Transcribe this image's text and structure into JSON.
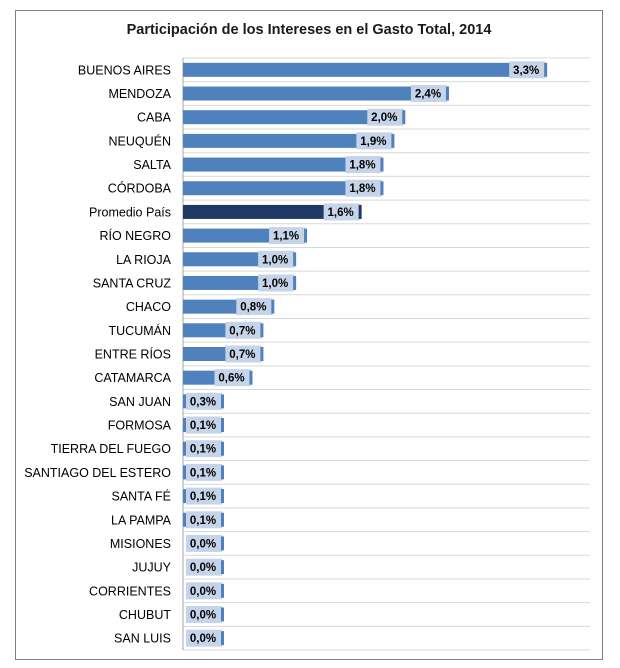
{
  "chart_data": {
    "type": "bar",
    "orientation": "horizontal",
    "title": "Participación de los Intereses en el Gasto Total, 2014",
    "categories": [
      "BUENOS AIRES",
      "MENDOZA",
      "CABA",
      "NEUQUÉN",
      "SALTA",
      "CÓRDOBA",
      "Promedio País",
      "RÍO NEGRO",
      "LA RIOJA",
      "SANTA CRUZ",
      "CHACO",
      "TUCUMÁN",
      "ENTRE RÍOS",
      "CATAMARCA",
      "SAN JUAN",
      "FORMOSA",
      "TIERRA DEL FUEGO",
      "SANTIAGO DEL ESTERO",
      "SANTA FÉ",
      "LA PAMPA",
      "MISIONES",
      "JUJUY",
      "CORRIENTES",
      "CHUBUT",
      "SAN LUIS"
    ],
    "values": [
      3.3,
      2.4,
      2.0,
      1.9,
      1.8,
      1.8,
      1.6,
      1.1,
      1.0,
      1.0,
      0.8,
      0.7,
      0.7,
      0.6,
      0.3,
      0.1,
      0.1,
      0.1,
      0.1,
      0.1,
      0.0,
      0.0,
      0.0,
      0.0,
      0.0
    ],
    "value_labels": [
      "3,3%",
      "2,4%",
      "2,0%",
      "1,9%",
      "1,8%",
      "1,8%",
      "1,6%",
      "1,1%",
      "1,0%",
      "1,0%",
      "0,8%",
      "0,7%",
      "0,7%",
      "0,6%",
      "0,3%",
      "0,1%",
      "0,1%",
      "0,1%",
      "0,1%",
      "0,1%",
      "0,0%",
      "0,0%",
      "0,0%",
      "0,0%",
      "0,0%"
    ],
    "highlight_category": "Promedio País",
    "xlim": [
      0,
      3.5
    ],
    "grid": "horizontal",
    "legend": "none",
    "colors": {
      "bar": "#4f81bd",
      "highlight": "#1f3864",
      "label_box": "#c6d4ea",
      "grid": "#d9d9d9",
      "axis": "#a6a6a6"
    }
  }
}
